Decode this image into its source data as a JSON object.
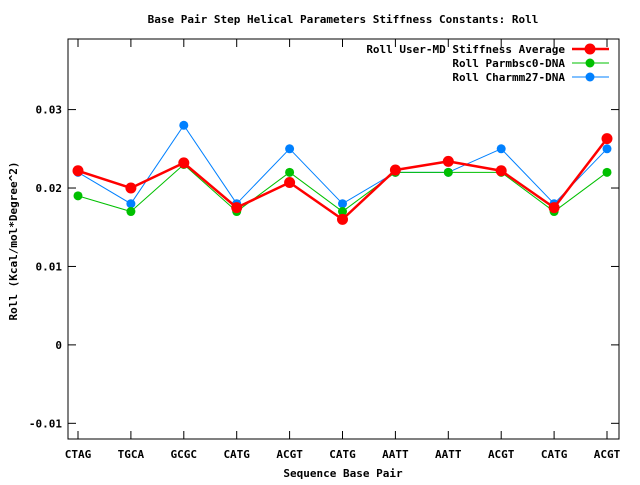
{
  "chart_data": {
    "type": "line",
    "title": "Base Pair Step Helical Parameters Stiffness Constants: Roll",
    "xlabel": "Sequence Base Pair",
    "ylabel": "Roll (Kcal/mol*Degree^2)",
    "categories": [
      "CTAG",
      "TGCA",
      "GCGC",
      "CATG",
      "ACGT",
      "CATG",
      "AATT",
      "AATT",
      "ACGT",
      "CATG",
      "ACGT"
    ],
    "ylim": [
      -0.012,
      0.039
    ],
    "yticks": [
      -0.01,
      0,
      0.01,
      0.02,
      0.03
    ],
    "ytick_labels": [
      "-0.01",
      "0",
      "0.01",
      "0.02",
      "0.03"
    ],
    "grid": false,
    "legend_position": "top-right",
    "series": [
      {
        "name": "Roll User-MD Stiffness Average",
        "color": "#ff0000",
        "values": [
          0.0222,
          0.02,
          0.0232,
          0.0175,
          0.0207,
          0.016,
          0.0223,
          0.0234,
          0.0222,
          0.0175,
          0.0263
        ]
      },
      {
        "name": "Roll Parmbsc0-DNA",
        "color": "#00c000",
        "values": [
          0.019,
          0.017,
          0.023,
          0.017,
          0.022,
          0.017,
          0.022,
          0.022,
          0.022,
          0.017,
          0.022
        ]
      },
      {
        "name": "Roll Charmm27-DNA",
        "color": "#0080ff",
        "values": [
          0.022,
          0.018,
          0.028,
          0.018,
          0.025,
          0.018,
          0.022,
          0.022,
          0.025,
          0.018,
          0.025
        ]
      }
    ]
  }
}
